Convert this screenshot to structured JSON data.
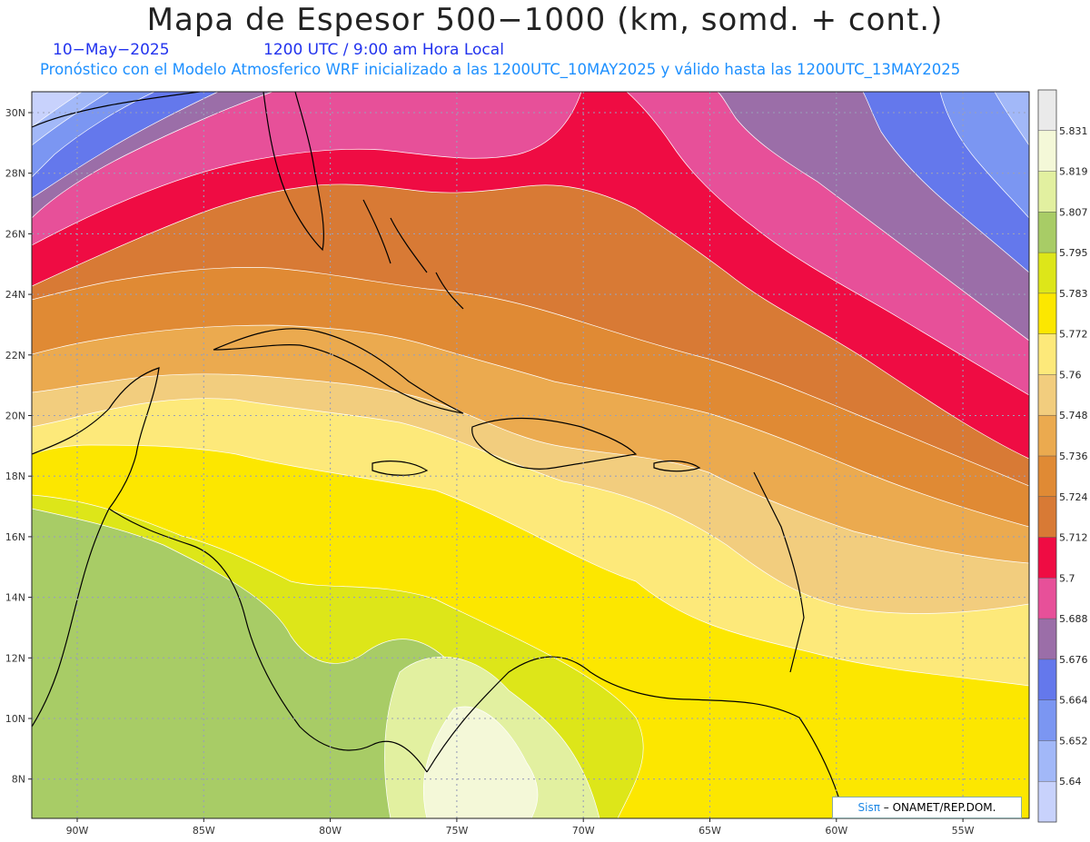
{
  "header": {
    "title": "Mapa de Espesor 500−1000 (km, somd. + cont.)",
    "date": "10−May−2025",
    "time": "1200 UTC / 9:00 am Hora Local",
    "description": "Pronóstico con el Modelo Atmosferico WRF inicializado a las 1200UTC_10MAY2025 y válido hasta las  1200UTC_13MAY2025"
  },
  "axes": {
    "lat_labels": [
      "30N",
      "28N",
      "26N",
      "24N",
      "22N",
      "20N",
      "18N",
      "16N",
      "14N",
      "12N",
      "10N",
      "8N"
    ],
    "lon_labels": [
      "90W",
      "85W",
      "80W",
      "75W",
      "70W",
      "65W",
      "60W",
      "55W"
    ]
  },
  "colorbar": {
    "levels": [
      "5.831",
      "5.819",
      "5.807",
      "5.795",
      "5.783",
      "5.772",
      "5.76",
      "5.748",
      "5.736",
      "5.724",
      "5.712",
      "5.7",
      "5.688",
      "5.676",
      "5.664",
      "5.652",
      "5.64"
    ],
    "colors": [
      "#eaeaea",
      "#f4f8d8",
      "#e2f0a0",
      "#a8cc66",
      "#dde619",
      "#fce700",
      "#fde97a",
      "#f2cd7e",
      "#ebaa4f",
      "#e08a34",
      "#d87a35",
      "#ef0c43",
      "#e75099",
      "#9b6ea8",
      "#6478ec",
      "#7b96f2",
      "#a2b8f8",
      "#c8d2fc"
    ]
  },
  "credit": {
    "brand": "Sisπ",
    "text": "– ONAMET/REP.DOM."
  }
}
